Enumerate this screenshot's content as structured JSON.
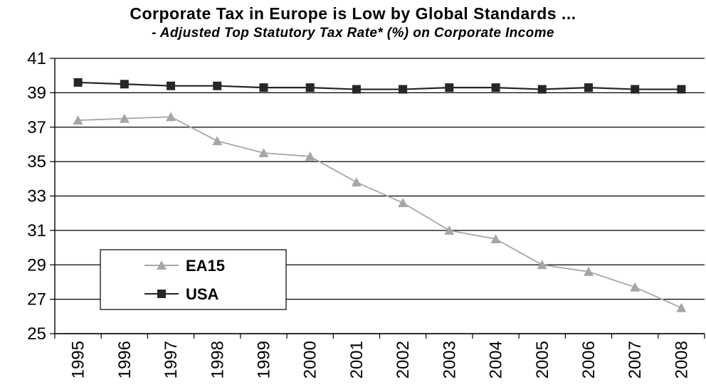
{
  "chart_data": {
    "type": "line",
    "title": "Corporate Tax in Europe is Low by Global Standards ...",
    "subtitle": "- Adjusted Top Statutory Tax Rate* (%) on Corporate Income",
    "xlabel": "",
    "ylabel": "",
    "categories": [
      "1995",
      "1996",
      "1997",
      "1998",
      "1999",
      "2000",
      "2001",
      "2002",
      "2003",
      "2004",
      "2005",
      "2006",
      "2007",
      "2008"
    ],
    "ylim": [
      25,
      41
    ],
    "yticks": [
      25,
      27,
      29,
      31,
      33,
      35,
      37,
      39,
      41
    ],
    "grid": true,
    "legend_placement": "bottom-left",
    "series": [
      {
        "name": "EA15",
        "marker": "triangle",
        "color": "#a6a6a6",
        "values": [
          37.4,
          37.5,
          37.6,
          36.2,
          35.5,
          35.3,
          33.8,
          32.6,
          31.0,
          30.5,
          29.0,
          28.6,
          27.7,
          26.5
        ]
      },
      {
        "name": "USA",
        "marker": "square",
        "color": "#262626",
        "values": [
          39.6,
          39.5,
          39.4,
          39.4,
          39.3,
          39.3,
          39.2,
          39.2,
          39.3,
          39.3,
          39.2,
          39.3,
          39.2,
          39.2
        ]
      }
    ]
  }
}
